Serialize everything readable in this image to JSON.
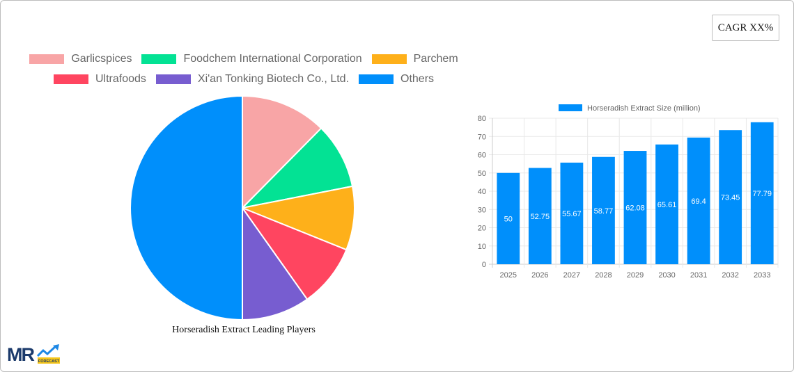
{
  "cagr_badge": {
    "label": "CAGR XX%"
  },
  "pie_legend": [
    {
      "label": "Garlicspices",
      "color": "#f8a5a6"
    },
    {
      "label": "Foodchem International Corporation",
      "color": "#03e294"
    },
    {
      "label": "Parchem",
      "color": "#feb01a"
    },
    {
      "label": "Ultrafoods",
      "color": "#ff4560"
    },
    {
      "label": "Xi'an Tonking Biotech Co., Ltd.",
      "color": "#775dd0"
    },
    {
      "label": "Others",
      "color": "#008ffb"
    }
  ],
  "bar_legend": {
    "label": "Horseradish Extract Size (million)",
    "color": "#008ffb"
  },
  "logo": {
    "text": "MR",
    "sub": "FORECAST"
  },
  "chart_data": [
    {
      "type": "pie",
      "title": "Horseradish Extract Leading Players",
      "categories": [
        "Garlicspices",
        "Foodchem International Corporation",
        "Parchem",
        "Ultrafoods",
        "Xi'an Tonking Biotech Co., Ltd.",
        "Others"
      ],
      "values": [
        12.4,
        9.5,
        9.2,
        9.1,
        9.8,
        50.0
      ],
      "colors": [
        "#f8a5a6",
        "#03e294",
        "#feb01a",
        "#ff4560",
        "#775dd0",
        "#008ffb"
      ],
      "legend_position": "top"
    },
    {
      "type": "bar",
      "title": "",
      "series": [
        {
          "name": "Horseradish Extract Size (million)",
          "values": [
            50,
            52.75,
            55.67,
            58.77,
            62.08,
            65.61,
            69.4,
            73.45,
            77.79
          ]
        }
      ],
      "categories": [
        "2025",
        "2026",
        "2027",
        "2028",
        "2029",
        "2030",
        "2031",
        "2032",
        "2033"
      ],
      "xlabel": "",
      "ylabel": "",
      "ylim": [
        0,
        80
      ],
      "yticks": [
        0,
        10,
        20,
        30,
        40,
        50,
        60,
        70,
        80
      ],
      "grid": true,
      "legend_position": "top",
      "color": "#008ffb"
    }
  ]
}
